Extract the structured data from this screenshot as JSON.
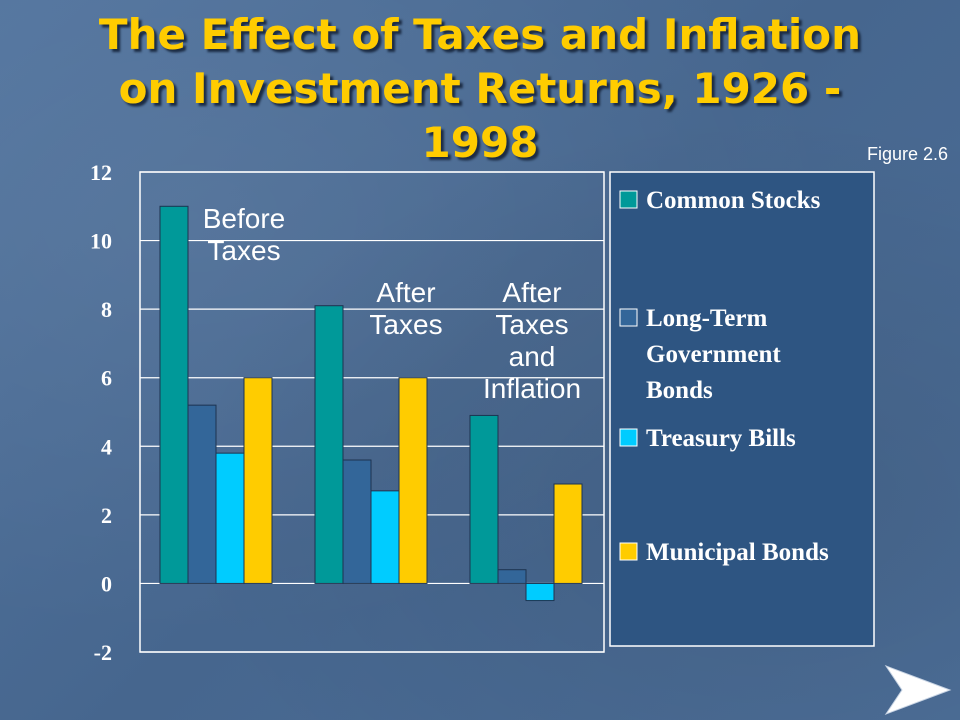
{
  "slide": {
    "title_line1": "The Effect of Taxes and Inflation",
    "title_line2": "on Investment Returns, 1926 -",
    "title_line3": "1998",
    "figure_label": "Figure 2.6"
  },
  "chart_data": {
    "type": "bar",
    "title": "The Effect of Taxes and Inflation on Investment Returns, 1926 - 1998",
    "xlabel": "",
    "ylabel": "",
    "ylim": [
      -2,
      12
    ],
    "yticks": [
      -2,
      0,
      2,
      4,
      6,
      8,
      10,
      12
    ],
    "grid": true,
    "legend_position": "right",
    "categories": [
      [
        "Before",
        "Taxes"
      ],
      [
        "After",
        "Taxes"
      ],
      [
        "After",
        "Taxes",
        "and",
        "Inflation"
      ]
    ],
    "series": [
      {
        "name": [
          "Common Stocks"
        ],
        "color": "#009999",
        "values": [
          11.0,
          8.1,
          4.9
        ]
      },
      {
        "name": [
          "Long-Term",
          "Government",
          "Bonds"
        ],
        "color": "#336699",
        "values": [
          5.2,
          3.6,
          0.4
        ]
      },
      {
        "name": [
          "Treasury Bills"
        ],
        "color": "#00ccff",
        "values": [
          3.8,
          2.7,
          -0.5
        ]
      },
      {
        "name": [
          "Municipal Bonds"
        ],
        "color": "#ffcc00",
        "values": [
          6.0,
          6.0,
          2.9
        ]
      }
    ]
  }
}
